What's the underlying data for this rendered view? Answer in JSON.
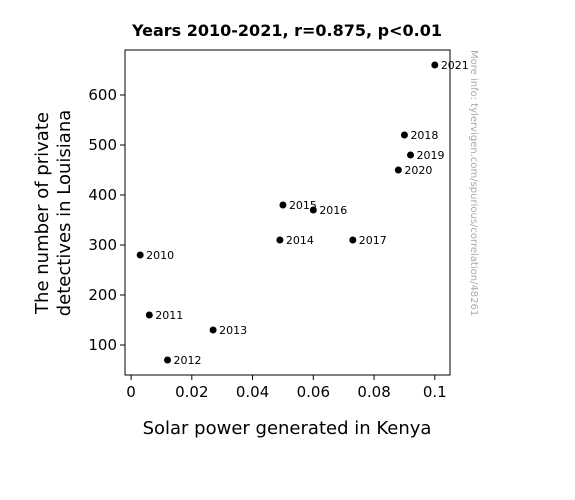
{
  "chart_data": {
    "type": "scatter",
    "title": "Years 2010-2021, r=0.875, p<0.01",
    "xlabel": "Solar power generated in Kenya",
    "ylabel_lines": [
      "The number of private",
      "detectives in Louisiana"
    ],
    "xlim": [
      -0.002,
      0.105
    ],
    "ylim": [
      40,
      690
    ],
    "xticks": [
      {
        "value": 0,
        "label": "0"
      },
      {
        "value": 0.02,
        "label": "0.02"
      },
      {
        "value": 0.04,
        "label": "0.04"
      },
      {
        "value": 0.06,
        "label": "0.06"
      },
      {
        "value": 0.08,
        "label": "0.08"
      },
      {
        "value": 0.1,
        "label": "0.1"
      }
    ],
    "yticks": [
      {
        "value": 100,
        "label": "100"
      },
      {
        "value": 200,
        "label": "200"
      },
      {
        "value": 300,
        "label": "300"
      },
      {
        "value": 400,
        "label": "400"
      },
      {
        "value": 500,
        "label": "500"
      },
      {
        "value": 600,
        "label": "600"
      }
    ],
    "grid": false,
    "marker_color": "#000000",
    "points": [
      {
        "label": "2010",
        "x": 0.003,
        "y": 280
      },
      {
        "label": "2011",
        "x": 0.006,
        "y": 160
      },
      {
        "label": "2012",
        "x": 0.012,
        "y": 70
      },
      {
        "label": "2013",
        "x": 0.027,
        "y": 130
      },
      {
        "label": "2014",
        "x": 0.049,
        "y": 310
      },
      {
        "label": "2015",
        "x": 0.05,
        "y": 380
      },
      {
        "label": "2016",
        "x": 0.06,
        "y": 370
      },
      {
        "label": "2017",
        "x": 0.073,
        "y": 310
      },
      {
        "label": "2018",
        "x": 0.09,
        "y": 520
      },
      {
        "label": "2019",
        "x": 0.092,
        "y": 480
      },
      {
        "label": "2020",
        "x": 0.088,
        "y": 450
      },
      {
        "label": "2021",
        "x": 0.1,
        "y": 660
      }
    ],
    "watermark": "More info: tylervigen.com/spurious/correlation/48261"
  }
}
